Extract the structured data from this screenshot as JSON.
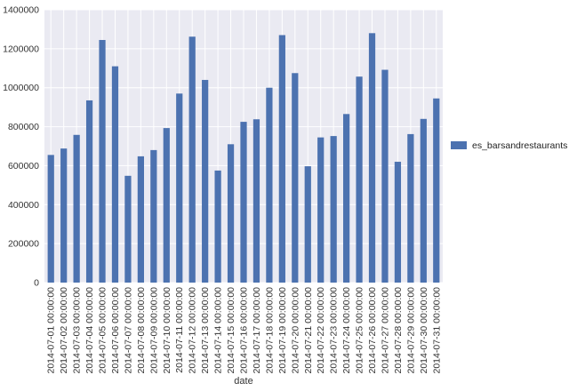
{
  "chart_data": {
    "type": "bar",
    "xlabel": "date",
    "ylabel": "",
    "ylim": [
      0,
      1400000
    ],
    "yticks": [
      "0",
      "200000",
      "400000",
      "600000",
      "800000",
      "1000000",
      "1200000",
      "1400000"
    ],
    "grid": true,
    "legend_placement": "right",
    "colors": {
      "bar": "#4c72b0",
      "plot_background": "#eaeaf2",
      "grid": "#ffffff"
    },
    "categories": [
      "2014-07-01 00:00:00",
      "2014-07-02 00:00:00",
      "2014-07-03 00:00:00",
      "2014-07-04 00:00:00",
      "2014-07-05 00:00:00",
      "2014-07-06 00:00:00",
      "2014-07-07 00:00:00",
      "2014-07-08 00:00:00",
      "2014-07-09 00:00:00",
      "2014-07-10 00:00:00",
      "2014-07-11 00:00:00",
      "2014-07-12 00:00:00",
      "2014-07-13 00:00:00",
      "2014-07-14 00:00:00",
      "2014-07-15 00:00:00",
      "2014-07-16 00:00:00",
      "2014-07-17 00:00:00",
      "2014-07-18 00:00:00",
      "2014-07-19 00:00:00",
      "2014-07-20 00:00:00",
      "2014-07-21 00:00:00",
      "2014-07-22 00:00:00",
      "2014-07-23 00:00:00",
      "2014-07-24 00:00:00",
      "2014-07-25 00:00:00",
      "2014-07-26 00:00:00",
      "2014-07-27 00:00:00",
      "2014-07-28 00:00:00",
      "2014-07-29 00:00:00",
      "2014-07-30 00:00:00",
      "2014-07-31 00:00:00"
    ],
    "series": [
      {
        "name": "es_barsandrestaurants",
        "values": [
          655000,
          688000,
          758000,
          935000,
          1245000,
          1110000,
          548000,
          648000,
          680000,
          793000,
          970000,
          1262000,
          1040000,
          575000,
          710000,
          825000,
          838000,
          1000000,
          1270000,
          1075000,
          597000,
          745000,
          752000,
          865000,
          1057000,
          1280000,
          1092000,
          620000,
          762000,
          840000,
          945000
        ]
      }
    ]
  }
}
